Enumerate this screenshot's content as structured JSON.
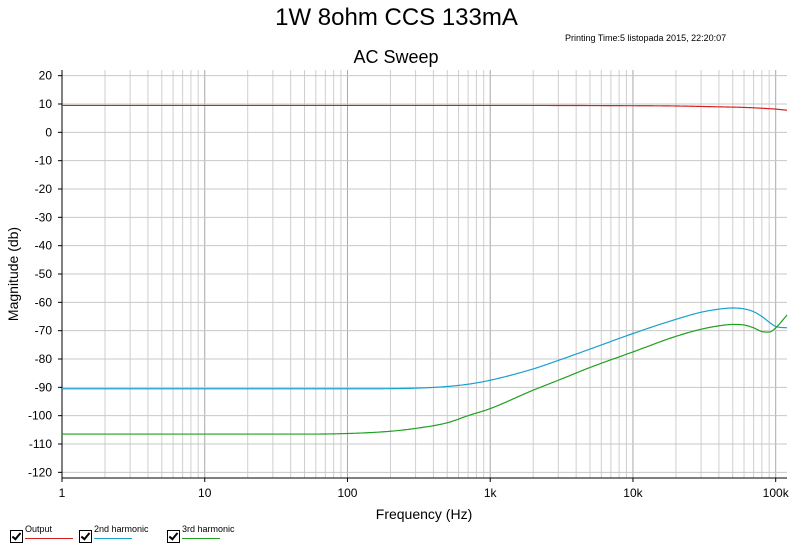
{
  "header": {
    "title": "1W 8ohm CCS 133mA",
    "print_time": "Printing Time:5 listopada 2015, 22:20:07"
  },
  "legend": [
    {
      "label": "Output",
      "color": "#d62020",
      "checked": true
    },
    {
      "label": "2nd harmonic",
      "color": "#1aa0d0",
      "checked": true
    },
    {
      "label": "3rd harmonic",
      "color": "#20a020",
      "checked": true
    }
  ],
  "chart_data": {
    "type": "line",
    "title": "AC Sweep",
    "xlabel": "Frequency (Hz)",
    "ylabel": "Magnitude (db)",
    "x_scale": "log",
    "xlim": [
      1,
      120000
    ],
    "ylim": [
      -122,
      22
    ],
    "x_ticks": [
      {
        "value": 1,
        "label": "1"
      },
      {
        "value": 10,
        "label": "10"
      },
      {
        "value": 100,
        "label": "100"
      },
      {
        "value": 1000,
        "label": "1k"
      },
      {
        "value": 10000,
        "label": "10k"
      },
      {
        "value": 100000,
        "label": "100k"
      }
    ],
    "y_ticks": [
      20,
      10,
      0,
      -10,
      -20,
      -30,
      -40,
      -50,
      -60,
      -70,
      -80,
      -90,
      -100,
      -110,
      -120
    ],
    "grid": true,
    "series": [
      {
        "name": "Output",
        "color": "#d62020",
        "x": [
          1,
          10,
          100,
          1000,
          10000,
          20000,
          40000,
          60000,
          80000,
          100000,
          120000
        ],
        "y": [
          9.5,
          9.5,
          9.5,
          9.5,
          9.4,
          9.3,
          9.0,
          8.8,
          8.5,
          8.2,
          7.8
        ]
      },
      {
        "name": "2nd harmonic",
        "color": "#1aa0d0",
        "x": [
          1,
          10,
          100,
          300,
          500,
          700,
          1000,
          2000,
          3000,
          5000,
          10000,
          20000,
          30000,
          40000,
          50000,
          60000,
          70000,
          80000,
          90000,
          100000,
          120000
        ],
        "y": [
          -90.5,
          -90.5,
          -90.5,
          -90.3,
          -89.7,
          -88.9,
          -87.5,
          -83.5,
          -80.5,
          -76.5,
          -71.0,
          -66.0,
          -63.5,
          -62.4,
          -62.0,
          -62.3,
          -63.3,
          -65.0,
          -67.0,
          -68.5,
          -69.0
        ]
      },
      {
        "name": "3rd harmonic",
        "color": "#20a020",
        "x": [
          1,
          10,
          50,
          100,
          200,
          300,
          500,
          700,
          1000,
          2000,
          3000,
          5000,
          10000,
          20000,
          30000,
          40000,
          50000,
          60000,
          70000,
          80000,
          90000,
          100000,
          120000
        ],
        "y": [
          -106.5,
          -106.5,
          -106.5,
          -106.3,
          -105.5,
          -104.5,
          -102.5,
          -100.0,
          -97.5,
          -91.0,
          -87.5,
          -83.0,
          -77.5,
          -72.0,
          -69.5,
          -68.3,
          -67.8,
          -68.0,
          -69.0,
          -70.3,
          -70.5,
          -69.0,
          -64.5
        ]
      }
    ]
  }
}
